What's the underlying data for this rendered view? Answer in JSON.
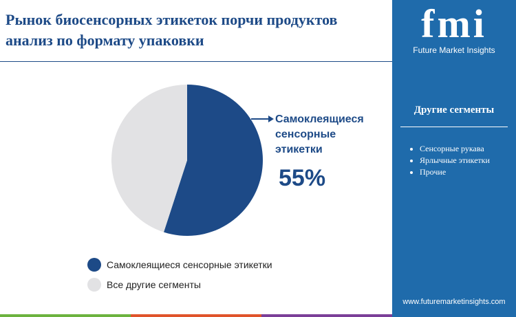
{
  "chart_data": {
    "type": "pie",
    "title": "Рынок биосенсорных этикеток порчи продуктов анализ по формату упаковки",
    "categories": [
      "Самоклеящиеся сенсорные этикетки",
      "Все другие сегменты"
    ],
    "values": [
      55,
      45
    ],
    "value_labels": [
      "55%",
      null
    ],
    "colors": [
      "#1d4a87",
      "#e2e2e4"
    ],
    "legend": "bottom"
  },
  "sidebar": {
    "logo": "fmi",
    "brand": "Future Market Insights",
    "heading": "Другие сегменты",
    "items": [
      "Сенсорные рукава",
      "Ярлычные этикетки",
      "Прочие"
    ],
    "website": "www.futuremarketinsights.com"
  }
}
